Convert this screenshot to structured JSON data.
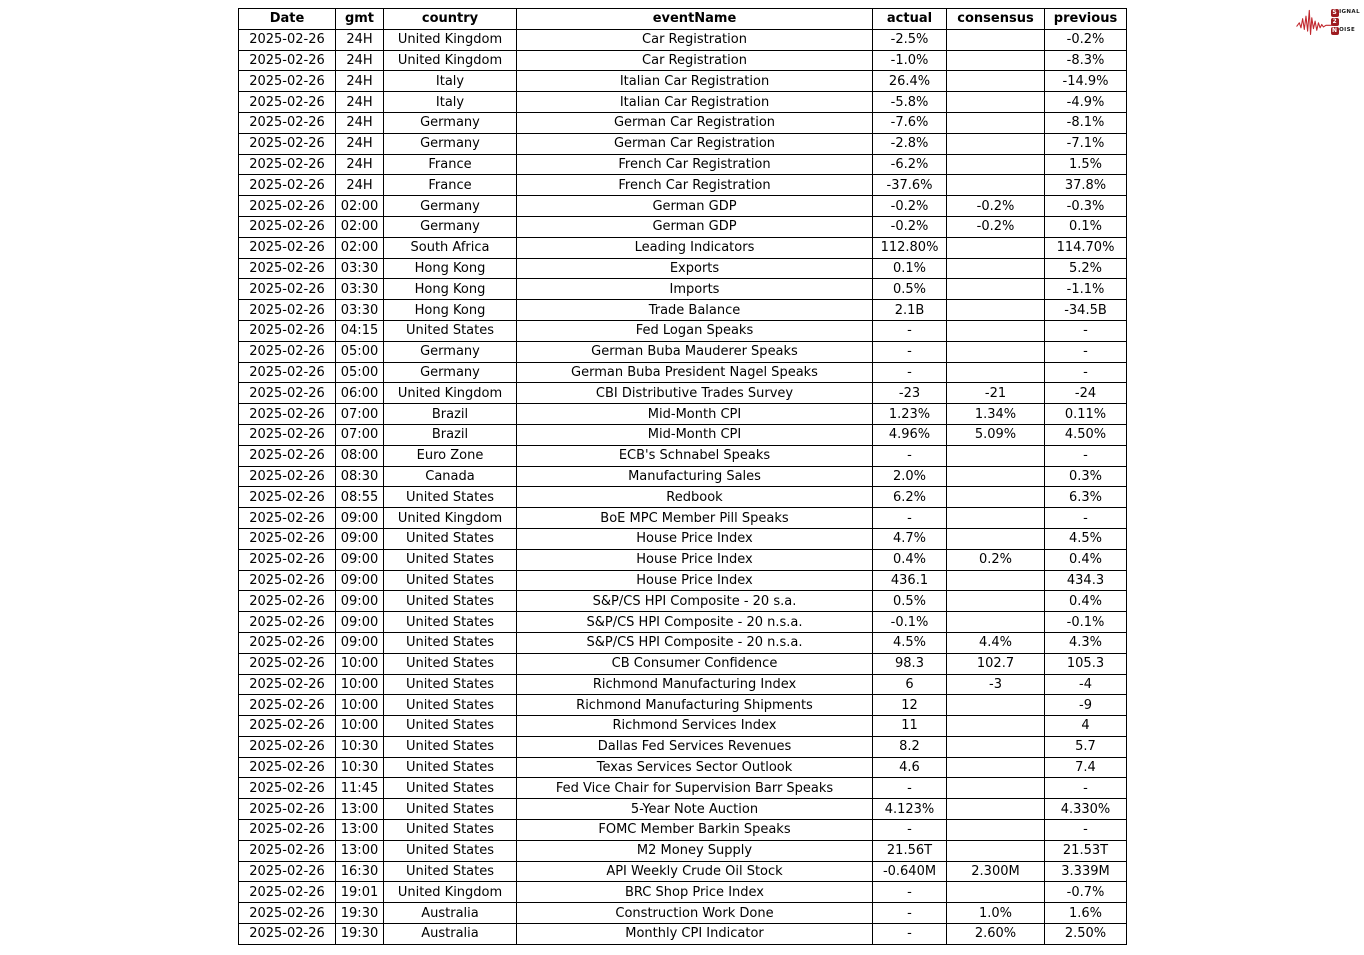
{
  "page": {
    "background": "#ffffff",
    "border_color": "#000000"
  },
  "logo": {
    "icon": "waveform-icon",
    "waveform_color": "#c1272d",
    "badge_color": "#9e1c21",
    "lines": [
      {
        "initial": "S",
        "rest": "IGNAL"
      },
      {
        "initial": "2",
        "rest": ""
      },
      {
        "initial": "N",
        "rest": "OISE"
      }
    ]
  },
  "chart_data": {
    "type": "table",
    "columns": [
      "Date",
      "gmt",
      "country",
      "eventName",
      "actual",
      "consensus",
      "previous"
    ],
    "rows": [
      [
        "2025-02-26",
        "24H",
        "United Kingdom",
        "Car Registration",
        "-2.5%",
        "",
        "-0.2%"
      ],
      [
        "2025-02-26",
        "24H",
        "United Kingdom",
        "Car Registration",
        "-1.0%",
        "",
        "-8.3%"
      ],
      [
        "2025-02-26",
        "24H",
        "Italy",
        "Italian Car Registration",
        "26.4%",
        "",
        "-14.9%"
      ],
      [
        "2025-02-26",
        "24H",
        "Italy",
        "Italian Car Registration",
        "-5.8%",
        "",
        "-4.9%"
      ],
      [
        "2025-02-26",
        "24H",
        "Germany",
        "German Car Registration",
        "-7.6%",
        "",
        "-8.1%"
      ],
      [
        "2025-02-26",
        "24H",
        "Germany",
        "German Car Registration",
        "-2.8%",
        "",
        "-7.1%"
      ],
      [
        "2025-02-26",
        "24H",
        "France",
        "French Car Registration",
        "-6.2%",
        "",
        "1.5%"
      ],
      [
        "2025-02-26",
        "24H",
        "France",
        "French Car Registration",
        "-37.6%",
        "",
        "37.8%"
      ],
      [
        "2025-02-26",
        "02:00",
        "Germany",
        "German GDP",
        "-0.2%",
        "-0.2%",
        "-0.3%"
      ],
      [
        "2025-02-26",
        "02:00",
        "Germany",
        "German GDP",
        "-0.2%",
        "-0.2%",
        "0.1%"
      ],
      [
        "2025-02-26",
        "02:00",
        "South Africa",
        "Leading Indicators",
        "112.80%",
        "",
        "114.70%"
      ],
      [
        "2025-02-26",
        "03:30",
        "Hong Kong",
        "Exports",
        "0.1%",
        "",
        "5.2%"
      ],
      [
        "2025-02-26",
        "03:30",
        "Hong Kong",
        "Imports",
        "0.5%",
        "",
        "-1.1%"
      ],
      [
        "2025-02-26",
        "03:30",
        "Hong Kong",
        "Trade Balance",
        "2.1B",
        "",
        "-34.5B"
      ],
      [
        "2025-02-26",
        "04:15",
        "United States",
        "Fed Logan Speaks",
        "-",
        "",
        "-"
      ],
      [
        "2025-02-26",
        "05:00",
        "Germany",
        "German Buba Mauderer Speaks",
        "-",
        "",
        "-"
      ],
      [
        "2025-02-26",
        "05:00",
        "Germany",
        "German Buba President Nagel Speaks",
        "-",
        "",
        "-"
      ],
      [
        "2025-02-26",
        "06:00",
        "United Kingdom",
        "CBI Distributive Trades Survey",
        "-23",
        "-21",
        "-24"
      ],
      [
        "2025-02-26",
        "07:00",
        "Brazil",
        "Mid-Month CPI",
        "1.23%",
        "1.34%",
        "0.11%"
      ],
      [
        "2025-02-26",
        "07:00",
        "Brazil",
        "Mid-Month CPI",
        "4.96%",
        "5.09%",
        "4.50%"
      ],
      [
        "2025-02-26",
        "08:00",
        "Euro Zone",
        "ECB's Schnabel Speaks",
        "-",
        "",
        "-"
      ],
      [
        "2025-02-26",
        "08:30",
        "Canada",
        "Manufacturing Sales",
        "2.0%",
        "",
        "0.3%"
      ],
      [
        "2025-02-26",
        "08:55",
        "United States",
        "Redbook",
        "6.2%",
        "",
        "6.3%"
      ],
      [
        "2025-02-26",
        "09:00",
        "United Kingdom",
        "BoE MPC Member Pill Speaks",
        "-",
        "",
        "-"
      ],
      [
        "2025-02-26",
        "09:00",
        "United States",
        "House Price Index",
        "4.7%",
        "",
        "4.5%"
      ],
      [
        "2025-02-26",
        "09:00",
        "United States",
        "House Price Index",
        "0.4%",
        "0.2%",
        "0.4%"
      ],
      [
        "2025-02-26",
        "09:00",
        "United States",
        "House Price Index",
        "436.1",
        "",
        "434.3"
      ],
      [
        "2025-02-26",
        "09:00",
        "United States",
        "S&P/CS HPI Composite - 20 s.a.",
        "0.5%",
        "",
        "0.4%"
      ],
      [
        "2025-02-26",
        "09:00",
        "United States",
        "S&P/CS HPI Composite - 20 n.s.a.",
        "-0.1%",
        "",
        "-0.1%"
      ],
      [
        "2025-02-26",
        "09:00",
        "United States",
        "S&P/CS HPI Composite - 20 n.s.a.",
        "4.5%",
        "4.4%",
        "4.3%"
      ],
      [
        "2025-02-26",
        "10:00",
        "United States",
        "CB Consumer Confidence",
        "98.3",
        "102.7",
        "105.3"
      ],
      [
        "2025-02-26",
        "10:00",
        "United States",
        "Richmond Manufacturing Index",
        "6",
        "-3",
        "-4"
      ],
      [
        "2025-02-26",
        "10:00",
        "United States",
        "Richmond Manufacturing Shipments",
        "12",
        "",
        "-9"
      ],
      [
        "2025-02-26",
        "10:00",
        "United States",
        "Richmond Services Index",
        "11",
        "",
        "4"
      ],
      [
        "2025-02-26",
        "10:30",
        "United States",
        "Dallas Fed Services Revenues",
        "8.2",
        "",
        "5.7"
      ],
      [
        "2025-02-26",
        "10:30",
        "United States",
        "Texas Services Sector Outlook",
        "4.6",
        "",
        "7.4"
      ],
      [
        "2025-02-26",
        "11:45",
        "United States",
        "Fed Vice Chair for Supervision Barr Speaks",
        "-",
        "",
        "-"
      ],
      [
        "2025-02-26",
        "13:00",
        "United States",
        "5-Year Note Auction",
        "4.123%",
        "",
        "4.330%"
      ],
      [
        "2025-02-26",
        "13:00",
        "United States",
        "FOMC Member Barkin Speaks",
        "-",
        "",
        "-"
      ],
      [
        "2025-02-26",
        "13:00",
        "United States",
        "M2 Money Supply",
        "21.56T",
        "",
        "21.53T"
      ],
      [
        "2025-02-26",
        "16:30",
        "United States",
        "API Weekly Crude Oil Stock",
        "-0.640M",
        "2.300M",
        "3.339M"
      ],
      [
        "2025-02-26",
        "19:01",
        "United Kingdom",
        "BRC Shop Price Index",
        "-",
        "",
        "-0.7%"
      ],
      [
        "2025-02-26",
        "19:30",
        "Australia",
        "Construction Work Done",
        "-",
        "1.0%",
        "1.6%"
      ],
      [
        "2025-02-26",
        "19:30",
        "Australia",
        "Monthly CPI Indicator",
        "-",
        "2.60%",
        "2.50%"
      ]
    ]
  }
}
